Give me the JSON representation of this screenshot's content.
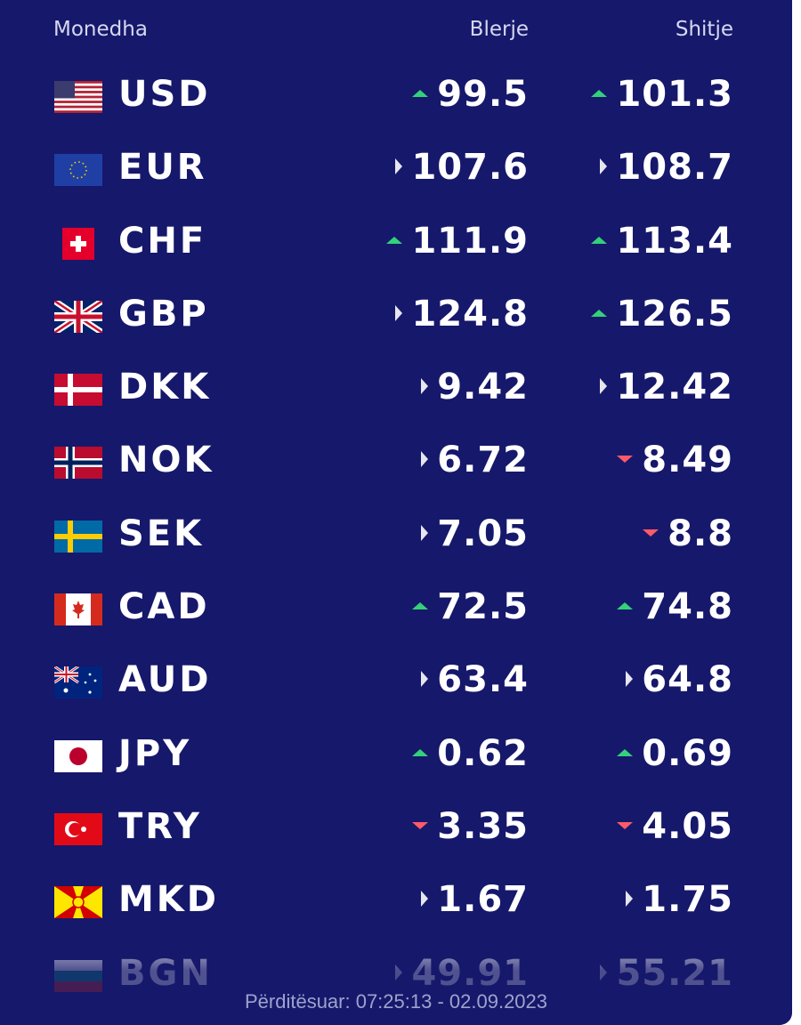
{
  "header": {
    "currency": "Monedha",
    "buy": "Blerje",
    "sell": "Shitje"
  },
  "colors": {
    "background": "#16186b",
    "up": "#33d17a",
    "down": "#ff5a6a",
    "flat": "#e6e6ee"
  },
  "rates": [
    {
      "code": "USD",
      "flag": "us-flag-icon",
      "buy": "99.5",
      "buy_trend": "up",
      "sell": "101.3",
      "sell_trend": "up"
    },
    {
      "code": "EUR",
      "flag": "eu-flag-icon",
      "buy": "107.6",
      "buy_trend": "flat",
      "sell": "108.7",
      "sell_trend": "flat"
    },
    {
      "code": "CHF",
      "flag": "ch-flag-icon",
      "buy": "111.9",
      "buy_trend": "up",
      "sell": "113.4",
      "sell_trend": "up"
    },
    {
      "code": "GBP",
      "flag": "gb-flag-icon",
      "buy": "124.8",
      "buy_trend": "flat",
      "sell": "126.5",
      "sell_trend": "up"
    },
    {
      "code": "DKK",
      "flag": "dk-flag-icon",
      "buy": "9.42",
      "buy_trend": "flat",
      "sell": "12.42",
      "sell_trend": "flat"
    },
    {
      "code": "NOK",
      "flag": "no-flag-icon",
      "buy": "6.72",
      "buy_trend": "flat",
      "sell": "8.49",
      "sell_trend": "down"
    },
    {
      "code": "SEK",
      "flag": "se-flag-icon",
      "buy": "7.05",
      "buy_trend": "flat",
      "sell": "8.8",
      "sell_trend": "down"
    },
    {
      "code": "CAD",
      "flag": "ca-flag-icon",
      "buy": "72.5",
      "buy_trend": "up",
      "sell": "74.8",
      "sell_trend": "up"
    },
    {
      "code": "AUD",
      "flag": "au-flag-icon",
      "buy": "63.4",
      "buy_trend": "flat",
      "sell": "64.8",
      "sell_trend": "flat"
    },
    {
      "code": "JPY",
      "flag": "jp-flag-icon",
      "buy": "0.62",
      "buy_trend": "up",
      "sell": "0.69",
      "sell_trend": "up"
    },
    {
      "code": "TRY",
      "flag": "tr-flag-icon",
      "buy": "3.35",
      "buy_trend": "down",
      "sell": "4.05",
      "sell_trend": "down"
    },
    {
      "code": "MKD",
      "flag": "mk-flag-icon",
      "buy": "1.67",
      "buy_trend": "flat",
      "sell": "1.75",
      "sell_trend": "flat"
    },
    {
      "code": "BGN",
      "flag": "bg-flag-icon",
      "buy": "49.91",
      "buy_trend": "flat",
      "sell": "55.21",
      "sell_trend": "flat"
    }
  ],
  "footer": {
    "updated": "Përditësuar: 07:25:13 - 02.09.2023"
  }
}
